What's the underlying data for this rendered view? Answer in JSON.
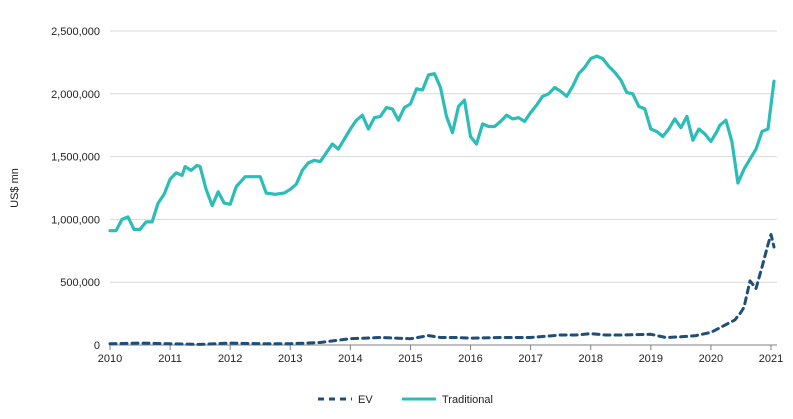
{
  "chart_data": {
    "type": "line",
    "xlabel": "",
    "ylabel": "US$ mn",
    "xlim": [
      2010,
      2021.1
    ],
    "ylim": [
      0,
      2500000
    ],
    "grid": "horizontal",
    "legend_position": "bottom-center",
    "x_ticks": [
      "2010",
      "2011",
      "2012",
      "2013",
      "2014",
      "2015",
      "2016",
      "2017",
      "2018",
      "2019",
      "2020",
      "2021"
    ],
    "y_ticks": [
      "0",
      "500,000",
      "1,000,000",
      "1,500,000",
      "2,000,000",
      "2,500,000"
    ],
    "series": [
      {
        "name": "EV",
        "style": "dashed",
        "color": "#1f4e79",
        "x": [
          2010.0,
          2010.5,
          2011.0,
          2011.5,
          2012.0,
          2012.5,
          2013.0,
          2013.5,
          2014.0,
          2014.5,
          2015.0,
          2015.3,
          2015.5,
          2015.75,
          2016.0,
          2016.5,
          2017.0,
          2017.5,
          2017.75,
          2018.0,
          2018.25,
          2018.5,
          2019.0,
          2019.25,
          2019.5,
          2019.75,
          2020.0,
          2020.2,
          2020.4,
          2020.5,
          2020.55,
          2020.65,
          2020.75,
          2020.85,
          2020.95,
          2021.0,
          2021.05
        ],
        "y": [
          10000,
          15000,
          10000,
          5000,
          15000,
          10000,
          10000,
          20000,
          50000,
          60000,
          50000,
          75000,
          60000,
          60000,
          55000,
          60000,
          60000,
          80000,
          80000,
          90000,
          80000,
          80000,
          85000,
          60000,
          65000,
          75000,
          100000,
          150000,
          200000,
          260000,
          300000,
          510000,
          450000,
          620000,
          800000,
          880000,
          780000
        ]
      },
      {
        "name": "Traditional",
        "style": "solid",
        "color": "#2bbdb7",
        "x": [
          2010.0,
          2010.1,
          2010.2,
          2010.3,
          2010.4,
          2010.5,
          2010.6,
          2010.7,
          2010.8,
          2010.9,
          2011.0,
          2011.1,
          2011.2,
          2011.25,
          2011.35,
          2011.45,
          2011.5,
          2011.6,
          2011.7,
          2011.8,
          2011.9,
          2012.0,
          2012.1,
          2012.25,
          2012.35,
          2012.5,
          2012.6,
          2012.75,
          2012.9,
          2013.0,
          2013.1,
          2013.2,
          2013.3,
          2013.4,
          2013.5,
          2013.6,
          2013.7,
          2013.8,
          2013.9,
          2014.0,
          2014.1,
          2014.2,
          2014.3,
          2014.4,
          2014.5,
          2014.6,
          2014.7,
          2014.8,
          2014.9,
          2015.0,
          2015.1,
          2015.2,
          2015.3,
          2015.4,
          2015.5,
          2015.6,
          2015.7,
          2015.8,
          2015.9,
          2016.0,
          2016.1,
          2016.2,
          2016.3,
          2016.4,
          2016.5,
          2016.6,
          2016.7,
          2016.8,
          2016.9,
          2017.0,
          2017.1,
          2017.2,
          2017.3,
          2017.4,
          2017.5,
          2017.6,
          2017.7,
          2017.8,
          2017.9,
          2018.0,
          2018.1,
          2018.2,
          2018.3,
          2018.4,
          2018.5,
          2018.6,
          2018.7,
          2018.8,
          2018.9,
          2019.0,
          2019.1,
          2019.2,
          2019.3,
          2019.4,
          2019.5,
          2019.6,
          2019.7,
          2019.8,
          2019.9,
          2020.0,
          2020.1,
          2020.15,
          2020.25,
          2020.35,
          2020.45,
          2020.55,
          2020.65,
          2020.75,
          2020.85,
          2020.95,
          2021.05
        ],
        "y": [
          910000,
          910000,
          1000000,
          1020000,
          920000,
          920000,
          980000,
          980000,
          1130000,
          1200000,
          1320000,
          1370000,
          1350000,
          1420000,
          1390000,
          1430000,
          1420000,
          1240000,
          1110000,
          1220000,
          1130000,
          1120000,
          1260000,
          1340000,
          1340000,
          1340000,
          1210000,
          1200000,
          1210000,
          1240000,
          1280000,
          1390000,
          1450000,
          1470000,
          1460000,
          1530000,
          1600000,
          1560000,
          1640000,
          1720000,
          1790000,
          1830000,
          1720000,
          1810000,
          1820000,
          1890000,
          1880000,
          1790000,
          1890000,
          1920000,
          2040000,
          2030000,
          2150000,
          2160000,
          2050000,
          1820000,
          1690000,
          1900000,
          1950000,
          1660000,
          1600000,
          1760000,
          1740000,
          1740000,
          1780000,
          1830000,
          1800000,
          1810000,
          1780000,
          1850000,
          1910000,
          1980000,
          2000000,
          2050000,
          2020000,
          1980000,
          2060000,
          2160000,
          2210000,
          2280000,
          2300000,
          2280000,
          2220000,
          2170000,
          2110000,
          2010000,
          2000000,
          1900000,
          1880000,
          1720000,
          1700000,
          1660000,
          1720000,
          1800000,
          1730000,
          1820000,
          1630000,
          1720000,
          1680000,
          1620000,
          1700000,
          1750000,
          1790000,
          1620000,
          1290000,
          1400000,
          1480000,
          1560000,
          1700000,
          1720000,
          2100000
        ]
      }
    ]
  }
}
